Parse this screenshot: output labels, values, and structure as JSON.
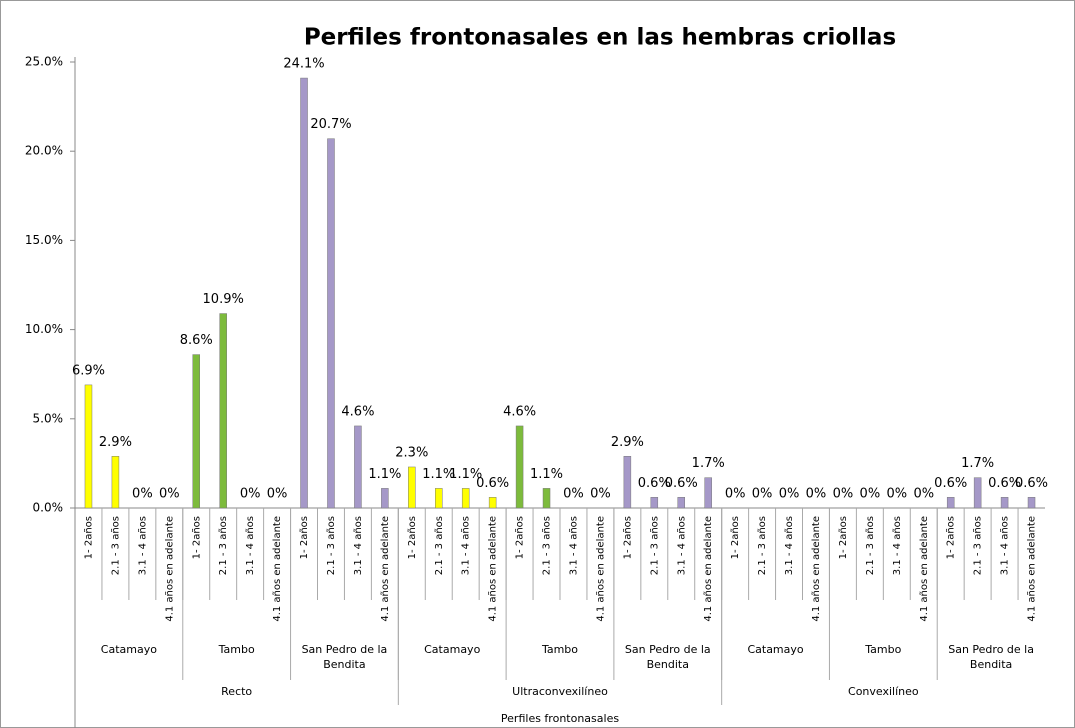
{
  "chart_data": {
    "type": "bar",
    "title": "Perfiles frontonasales en las hembras criollas",
    "x_label": "Perfiles frontonasales",
    "ylim": [
      0,
      25
    ],
    "yticks": [
      {
        "value": 0,
        "label": "0.0%"
      },
      {
        "value": 5,
        "label": "5.0%"
      },
      {
        "value": 10,
        "label": "10.0%"
      },
      {
        "value": 15,
        "label": "15.0%"
      },
      {
        "value": 20,
        "label": "20.0%"
      },
      {
        "value": 25,
        "label": "25.0%"
      }
    ],
    "groups": [
      {
        "name": "Recto",
        "subgroups": [
          {
            "name": "Catamayo",
            "color": "#ffff00",
            "categories": [
              "1- 2años",
              "2.1 - 3 años",
              "3.1 - 4 años",
              "4.1 años en adelante"
            ],
            "values": [
              6.9,
              2.9,
              0,
              0
            ],
            "value_labels": [
              "6.9%",
              "2.9%",
              "0%",
              "0%"
            ]
          },
          {
            "name": "Tambo",
            "color": "#7dbb3c",
            "categories": [
              "1- 2años",
              "2.1 - 3 años",
              "3.1 - 4 años",
              "4.1 años en adelante"
            ],
            "values": [
              8.6,
              10.9,
              0,
              0
            ],
            "value_labels": [
              "8.6%",
              "10.9%",
              "0%",
              "0%"
            ]
          },
          {
            "name": "San Pedro de la Bendita",
            "color": "#a598c8",
            "categories": [
              "1- 2años",
              "2.1 - 3 años",
              "3.1 - 4 años",
              "4.1 años en adelante"
            ],
            "values": [
              24.1,
              20.7,
              4.6,
              1.1
            ],
            "value_labels": [
              "24.1%",
              "20.7%",
              "4.6%",
              "1.1%"
            ]
          }
        ]
      },
      {
        "name": "Ultraconvexilíneo",
        "subgroups": [
          {
            "name": "Catamayo",
            "color": "#ffff00",
            "categories": [
              "1- 2años",
              "2.1 - 3 años",
              "3.1 - 4 años",
              "4.1 años en adelante"
            ],
            "values": [
              2.3,
              1.1,
              1.1,
              0.6
            ],
            "value_labels": [
              "2.3%",
              "1.1%",
              "1.1%",
              "0.6%"
            ]
          },
          {
            "name": "Tambo",
            "color": "#7dbb3c",
            "categories": [
              "1- 2años",
              "2.1 - 3 años",
              "3.1 - 4 años",
              "4.1 años en adelante"
            ],
            "values": [
              4.6,
              1.1,
              0,
              0
            ],
            "value_labels": [
              "4.6%",
              "1.1%",
              "0%",
              "0%"
            ]
          },
          {
            "name": "San Pedro de la Bendita",
            "color": "#a598c8",
            "categories": [
              "1- 2años",
              "2.1 - 3 años",
              "3.1 - 4 años",
              "4.1 años en adelante"
            ],
            "values": [
              2.9,
              0.6,
              0.6,
              1.7
            ],
            "value_labels": [
              "2.9%",
              "0.6%",
              "0.6%",
              "1.7%"
            ]
          }
        ]
      },
      {
        "name": "Convexilíneo",
        "subgroups": [
          {
            "name": "Catamayo",
            "color": "#ffff00",
            "categories": [
              "1- 2años",
              "2.1 - 3 años",
              "3.1 - 4 años",
              "4.1 años en adelante"
            ],
            "values": [
              0,
              0,
              0,
              0
            ],
            "value_labels": [
              "0%",
              "0%",
              "0%",
              "0%"
            ]
          },
          {
            "name": "Tambo",
            "color": "#7dbb3c",
            "categories": [
              "1- 2años",
              "2.1 - 3 años",
              "3.1 - 4 años",
              "4.1 años en adelante"
            ],
            "values": [
              0,
              0,
              0,
              0
            ],
            "value_labels": [
              "0%",
              "0%",
              "0%",
              "0%"
            ]
          },
          {
            "name": "San Pedro de la Bendita",
            "color": "#a598c8",
            "categories": [
              "1- 2años",
              "2.1 - 3 años",
              "3.1 - 4 años",
              "4.1 años en adelante"
            ],
            "values": [
              0.6,
              1.7,
              0.6,
              0.6
            ],
            "value_labels": [
              "0.6%",
              "1.7%",
              "0.6%",
              "0.6%"
            ]
          }
        ]
      }
    ]
  }
}
